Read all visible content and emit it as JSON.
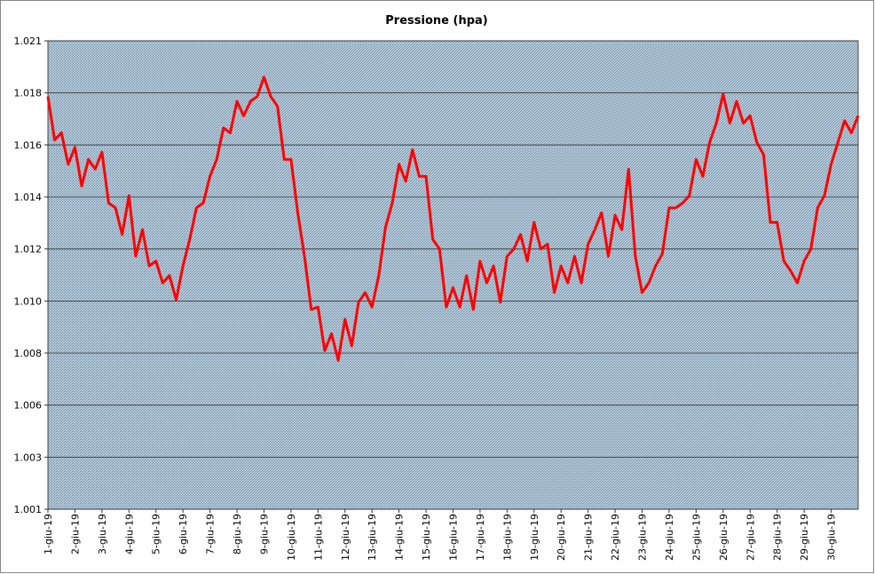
{
  "chart_data": {
    "type": "line",
    "title": "Pressione (hpa)",
    "x": [
      0,
      0.25,
      0.5,
      0.75,
      1,
      1.25,
      1.5,
      1.75,
      2,
      2.25,
      2.5,
      2.75,
      3,
      3.25,
      3.5,
      3.75,
      4,
      4.25,
      4.5,
      4.75,
      5,
      5.25,
      5.5,
      5.75,
      6,
      6.25,
      6.5,
      6.75,
      7,
      7.25,
      7.5,
      7.75,
      8,
      8.25,
      8.5,
      8.75,
      9,
      9.25,
      9.5,
      9.75,
      10,
      10.25,
      10.5,
      10.75,
      11,
      11.25,
      11.5,
      11.75,
      12,
      12.25,
      12.5,
      12.75,
      13,
      13.25,
      13.5,
      13.75,
      14,
      14.25,
      14.5,
      14.75,
      15,
      15.25,
      15.5,
      15.75,
      16,
      16.25,
      16.5,
      16.75,
      17,
      17.25,
      17.5,
      17.75,
      18,
      18.25,
      18.5,
      18.75,
      19,
      19.25,
      19.5,
      19.75,
      20,
      20.25,
      20.5,
      20.75,
      21,
      21.25,
      21.5,
      21.75,
      22,
      22.25,
      22.5,
      22.75,
      23,
      23.25,
      23.5,
      23.75,
      24,
      24.25,
      24.5,
      24.75,
      25,
      25.25,
      25.5,
      25.75,
      26,
      26.25,
      26.5,
      26.75,
      27,
      27.25,
      27.5,
      27.75,
      28,
      28.25,
      28.5,
      28.75,
      29,
      29.25,
      29.5,
      29.75,
      30
    ],
    "series": [
      {
        "color": "#ff0000",
        "values": [
          1018.3,
          1016.5,
          1016.8,
          1015.5,
          1016.2,
          1014.6,
          1015.7,
          1015.3,
          1016.0,
          1013.9,
          1013.7,
          1012.6,
          1014.2,
          1011.7,
          1012.8,
          1011.3,
          1011.5,
          1010.6,
          1010.9,
          1009.9,
          1011.3,
          1012.4,
          1013.7,
          1013.9,
          1015.0,
          1015.7,
          1017.0,
          1016.8,
          1018.1,
          1017.5,
          1018.1,
          1018.3,
          1019.1,
          1018.3,
          1017.9,
          1015.7,
          1015.7,
          1013.5,
          1011.7,
          1009.5,
          1009.6,
          1007.8,
          1008.5,
          1007.4,
          1009.1,
          1008.0,
          1009.8,
          1010.2,
          1009.6,
          1010.9,
          1012.9,
          1013.9,
          1015.5,
          1014.8,
          1016.1,
          1015.0,
          1015.0,
          1012.4,
          1012.0,
          1009.6,
          1010.4,
          1009.6,
          1010.9,
          1009.5,
          1011.5,
          1010.6,
          1011.3,
          1009.8,
          1011.7,
          1012.0,
          1012.6,
          1011.5,
          1013.1,
          1012.0,
          1012.2,
          1010.2,
          1011.3,
          1010.6,
          1011.7,
          1010.6,
          1012.2,
          1012.8,
          1013.5,
          1011.7,
          1013.4,
          1012.8,
          1015.3,
          1011.7,
          1010.2,
          1010.6,
          1011.3,
          1011.8,
          1013.7,
          1013.7,
          1013.9,
          1014.2,
          1015.7,
          1015.0,
          1016.4,
          1017.2,
          1018.4,
          1017.2,
          1018.1,
          1017.2,
          1017.5,
          1016.4,
          1015.9,
          1013.1,
          1013.1,
          1011.5,
          1011.1,
          1010.6,
          1011.5,
          1012.0,
          1013.7,
          1014.2,
          1015.5,
          1016.4,
          1017.3,
          1016.8,
          1017.5
        ]
      }
    ],
    "xlim": [
      0,
      30
    ],
    "xticks": [
      {
        "value": 0,
        "label": "1-giu-19"
      },
      {
        "value": 1,
        "label": "2-giu-19"
      },
      {
        "value": 2,
        "label": "3-giu-19"
      },
      {
        "value": 3,
        "label": "4-giu-19"
      },
      {
        "value": 4,
        "label": "5-giu-19"
      },
      {
        "value": 5,
        "label": "6-giu-19"
      },
      {
        "value": 6,
        "label": "7-giu-19"
      },
      {
        "value": 7,
        "label": "8-giu-19"
      },
      {
        "value": 8,
        "label": "9-giu-19"
      },
      {
        "value": 9,
        "label": "10-giu-19"
      },
      {
        "value": 10,
        "label": "11-giu-19"
      },
      {
        "value": 11,
        "label": "12-giu-19"
      },
      {
        "value": 12,
        "label": "13-giu-19"
      },
      {
        "value": 13,
        "label": "14-giu-19"
      },
      {
        "value": 14,
        "label": "15-giu-19"
      },
      {
        "value": 15,
        "label": "16-giu-19"
      },
      {
        "value": 16,
        "label": "17-giu-19"
      },
      {
        "value": 17,
        "label": "18-giu-19"
      },
      {
        "value": 18,
        "label": "19-giu-19"
      },
      {
        "value": 19,
        "label": "20-giu-19"
      },
      {
        "value": 20,
        "label": "21-giu-19"
      },
      {
        "value": 21,
        "label": "22-giu-19"
      },
      {
        "value": 22,
        "label": "23-giu-19"
      },
      {
        "value": 23,
        "label": "24-giu-19"
      },
      {
        "value": 24,
        "label": "25-giu-19"
      },
      {
        "value": 25,
        "label": "26-giu-19"
      },
      {
        "value": 26,
        "label": "27-giu-19"
      },
      {
        "value": 27,
        "label": "28-giu-19"
      },
      {
        "value": 28,
        "label": "29-giu-19"
      },
      {
        "value": 29,
        "label": "30-giu-19"
      }
    ],
    "ylim": [
      1001.25,
      1020.6
    ],
    "yticks": [
      {
        "value": 1001.25,
        "label": "1.001"
      },
      {
        "value": 1003.4,
        "label": "1.003"
      },
      {
        "value": 1005.55,
        "label": "1.006"
      },
      {
        "value": 1007.7,
        "label": "1.008"
      },
      {
        "value": 1009.85,
        "label": "1.010"
      },
      {
        "value": 1012.0,
        "label": "1.012"
      },
      {
        "value": 1014.15,
        "label": "1.014"
      },
      {
        "value": 1016.3,
        "label": "1.016"
      },
      {
        "value": 1018.45,
        "label": "1.018"
      },
      {
        "value": 1020.6,
        "label": "1.021"
      }
    ],
    "grid": true
  }
}
